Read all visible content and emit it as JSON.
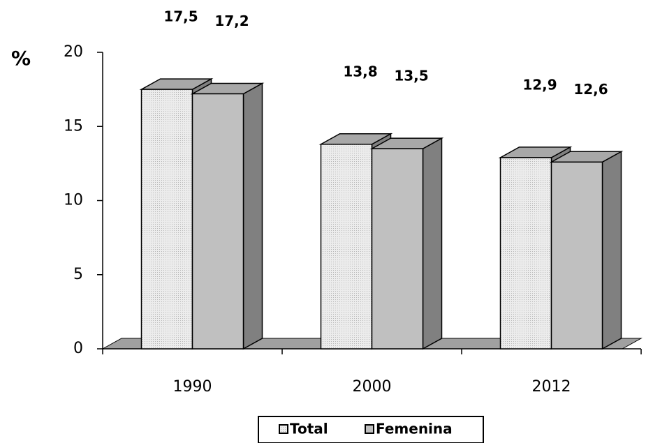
{
  "chart_data": {
    "type": "bar3d",
    "y_label": "%",
    "categories": [
      "1990",
      "2000",
      "2012"
    ],
    "series": [
      {
        "name": "Total",
        "color": "#e2e2e2",
        "values": [
          17.5,
          13.8,
          12.9
        ],
        "value_labels": [
          "17,5",
          "13,8",
          "12,9"
        ]
      },
      {
        "name": "Femenina",
        "color": "#c0c0c0",
        "values": [
          17.2,
          13.5,
          12.6
        ],
        "value_labels": [
          "17,2",
          "13,5",
          "12,6"
        ]
      }
    ],
    "ylim": [
      0,
      20
    ],
    "yticks": [
      0,
      5,
      10,
      15,
      20
    ],
    "legend": "bottom"
  }
}
